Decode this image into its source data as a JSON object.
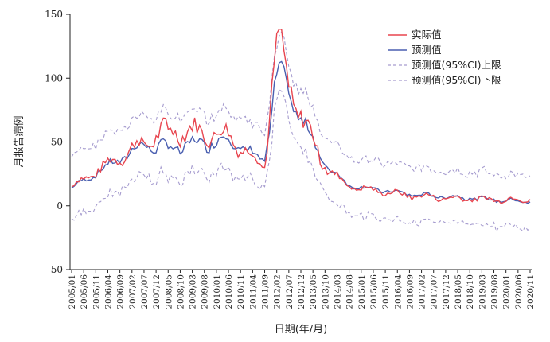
{
  "chart_data": {
    "type": "line",
    "title": "",
    "xlabel": "日期(年/月)",
    "ylabel": "月报告病例",
    "ylim": [
      -50,
      150
    ],
    "yticks": [
      -50,
      0,
      50,
      100,
      150
    ],
    "grid": false,
    "legend_position": "top-right",
    "x_tick_labels": [
      "2005/01",
      "2005/06",
      "2005/11",
      "2006/04",
      "2006/09",
      "2007/02",
      "2007/07",
      "2007/12",
      "2008/05",
      "2008/10",
      "2009/03",
      "2009/08",
      "2010/01",
      "2010/06",
      "2010/11",
      "2011/04",
      "2011/09",
      "2012/02",
      "2012/07",
      "2012/12",
      "2013/05",
      "2013/10",
      "2014/03",
      "2014/08",
      "2015/01",
      "2015/06",
      "2015/11",
      "2016/04",
      "2016/09",
      "2017/02",
      "2017/07",
      "2017/12",
      "2018/05",
      "2018/10",
      "2019/03",
      "2019/08",
      "2020/01",
      "2020/06",
      "2020/11"
    ],
    "key_points": [
      {
        "month": "2005/01",
        "actual": 15,
        "predicted": 14
      },
      {
        "month": "2007/07",
        "actual": 50,
        "predicted": 48
      },
      {
        "month": "2008/05",
        "actual": 60,
        "predicted": 45
      },
      {
        "month": "2010/06",
        "actual": 55,
        "predicted": 52
      },
      {
        "month": "2011/09",
        "actual": 30,
        "predicted": 35
      },
      {
        "month": "2012/02",
        "actual": 135,
        "predicted": 103
      },
      {
        "month": "2012/07",
        "actual": 93,
        "predicted": 88
      },
      {
        "month": "2013/10",
        "actual": 30,
        "predicted": 32
      },
      {
        "month": "2014/08",
        "actual": 15,
        "predicted": 16
      },
      {
        "month": "2016/09",
        "actual": 8,
        "predicted": 9
      },
      {
        "month": "2018/10",
        "actual": 5,
        "predicted": 6
      },
      {
        "month": "2020/11",
        "actual": 5,
        "predicted": 3
      }
    ],
    "ci_half_width_early": 25,
    "ci_half_width_late": 20,
    "series": [
      {
        "name": "实际值",
        "color": "#e8454f",
        "style": "solid"
      },
      {
        "name": "预测值",
        "color": "#4a5fb0",
        "style": "solid"
      },
      {
        "name": "预测值(95%CI)上限",
        "color": "#a69ccf",
        "style": "dashed"
      },
      {
        "name": "预测值(95%CI)下限",
        "color": "#a69ccf",
        "style": "dashed"
      }
    ]
  }
}
